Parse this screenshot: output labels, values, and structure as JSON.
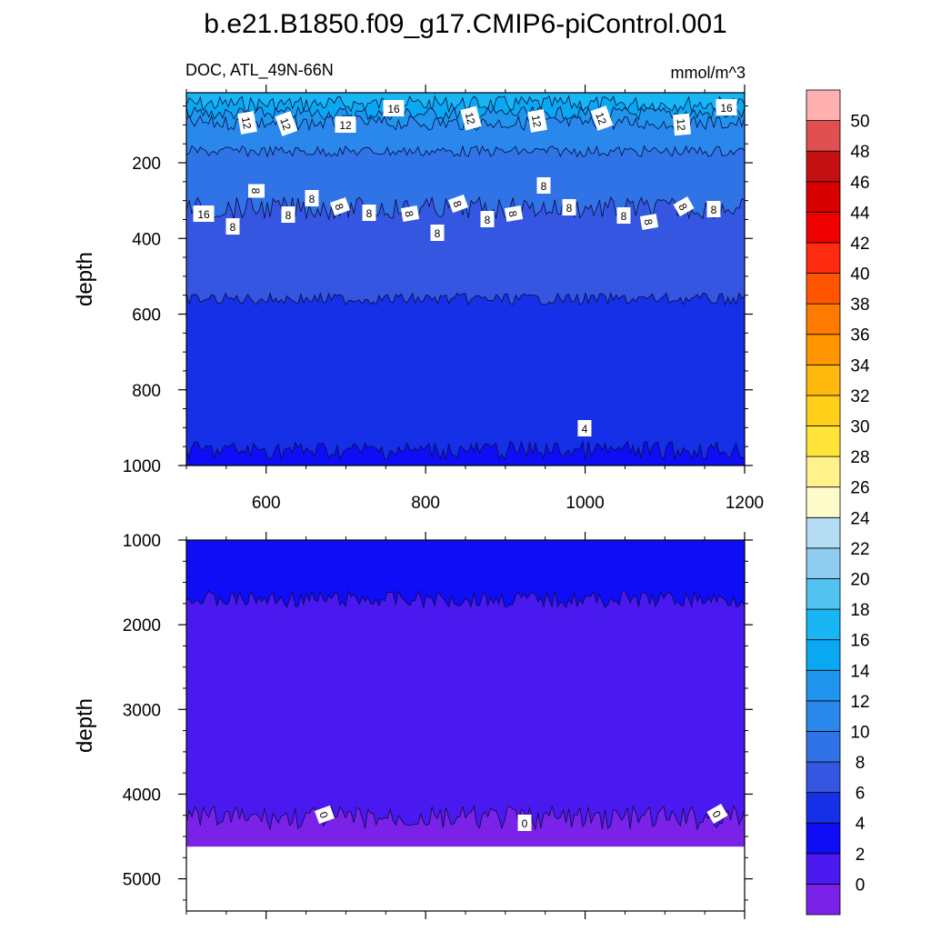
{
  "title": "b.e21.B1850.f09_g17.CMIP6-piControl.001",
  "left_subtitle": "DOC, ATL_49N-66N",
  "right_subtitle": "mmol/m^3",
  "chart_data": [
    {
      "type": "heatmap",
      "panel": "upper",
      "xlabel": "",
      "ylabel": "depth",
      "xlim": [
        500,
        1200
      ],
      "ylim": [
        1000,
        0
      ],
      "ylim_plotted": [
        1000,
        15
      ],
      "xticks": [
        600,
        800,
        1000,
        1200
      ],
      "yticks": [
        200,
        400,
        600,
        800,
        1000
      ],
      "bands": [
        {
          "min": 16,
          "max": 18,
          "depth_from": 15,
          "depth_to": 45
        },
        {
          "min": 14,
          "max": 16,
          "depth_from": 45,
          "depth_to": 70
        },
        {
          "min": 12,
          "max": 14,
          "depth_from": 70,
          "depth_to": 95
        },
        {
          "min": 10,
          "max": 12,
          "depth_from": 95,
          "depth_to": 170
        },
        {
          "min": 8,
          "max": 10,
          "depth_from": 170,
          "depth_to": 320
        },
        {
          "min": 6,
          "max": 8,
          "depth_from": 320,
          "depth_to": 560
        },
        {
          "min": 4,
          "max": 6,
          "depth_from": 560,
          "depth_to": 960
        },
        {
          "min": 2,
          "max": 4,
          "depth_from": 960,
          "depth_to": 1000
        }
      ],
      "contour_labels": [
        "16",
        "12",
        "12",
        "12",
        "16",
        "12",
        "12",
        "12",
        "12",
        "16",
        "8",
        "8",
        "8",
        "8",
        "8",
        "8",
        "8",
        "8",
        "8",
        "8",
        "8",
        "8",
        "8",
        "8",
        "8",
        "8",
        "8",
        "4"
      ]
    },
    {
      "type": "heatmap",
      "panel": "lower",
      "xlabel": "",
      "ylabel": "depth",
      "xlim": [
        500,
        1200
      ],
      "ylim": [
        5380,
        1000
      ],
      "xticks": [
        600,
        800,
        1000,
        1200
      ],
      "yticks": [
        1000,
        2000,
        3000,
        4000,
        5000
      ],
      "bands": [
        {
          "min": 2,
          "max": 4,
          "depth_from": 1000,
          "depth_to": 1700
        },
        {
          "min": 0,
          "max": 2,
          "depth_from": 1700,
          "depth_to": 4280
        },
        {
          "min": -2,
          "max": 0,
          "depth_from": 4280,
          "depth_to": 4620
        }
      ],
      "missing_below": 4620,
      "contour_labels": [
        "0",
        "0",
        "0"
      ]
    }
  ],
  "colorbar": {
    "levels": [
      "0",
      "2",
      "4",
      "6",
      "8",
      "10",
      "12",
      "14",
      "16",
      "18",
      "20",
      "22",
      "24",
      "26",
      "28",
      "30",
      "32",
      "34",
      "36",
      "38",
      "40",
      "42",
      "44",
      "46",
      "48",
      "50"
    ],
    "colors": [
      "#7b22e8",
      "#4a19f0",
      "#0f0df5",
      "#1530e6",
      "#3456e0",
      "#2f73e6",
      "#2a87eb",
      "#1f95ee",
      "#0aa8f3",
      "#18b6f4",
      "#52c3f0",
      "#8ecdf0",
      "#b4dcf2",
      "#fffccc",
      "#fff28c",
      "#ffe53a",
      "#ffcf1a",
      "#ffb80d",
      "#ff9600",
      "#ff7a00",
      "#ff5500",
      "#ff2a10",
      "#f00000",
      "#d90000",
      "#c41010",
      "#e05050",
      "#ffb0b0"
    ]
  }
}
